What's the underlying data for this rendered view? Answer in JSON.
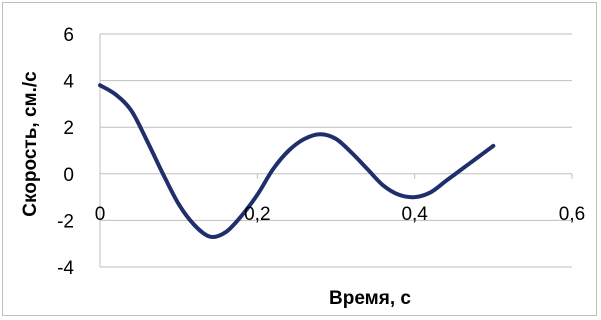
{
  "chart_data": {
    "type": "line",
    "title": "",
    "xlabel": "Время, с",
    "ylabel": "Скорость, см./с",
    "xlim": [
      0,
      0.6
    ],
    "ylim": [
      -4,
      6
    ],
    "x_ticks": [
      "0",
      "0,2",
      "0,4",
      "0,6"
    ],
    "y_ticks": [
      "6",
      "4",
      "2",
      "0",
      "-2",
      "-4"
    ],
    "grid": "horizontal",
    "legend": "none",
    "series": [
      {
        "color": "#1f2f6b",
        "x": [
          0.0,
          0.02,
          0.04,
          0.06,
          0.08,
          0.1,
          0.12,
          0.14,
          0.16,
          0.18,
          0.2,
          0.22,
          0.24,
          0.26,
          0.28,
          0.3,
          0.32,
          0.34,
          0.36,
          0.38,
          0.4,
          0.42,
          0.44,
          0.46,
          0.48,
          0.5
        ],
        "y": [
          3.8,
          3.4,
          2.7,
          1.4,
          0.0,
          -1.3,
          -2.2,
          -2.7,
          -2.5,
          -1.8,
          -0.9,
          0.2,
          1.0,
          1.5,
          1.7,
          1.5,
          0.9,
          0.2,
          -0.5,
          -0.9,
          -1.0,
          -0.8,
          -0.3,
          0.2,
          0.7,
          1.2
        ]
      }
    ]
  }
}
